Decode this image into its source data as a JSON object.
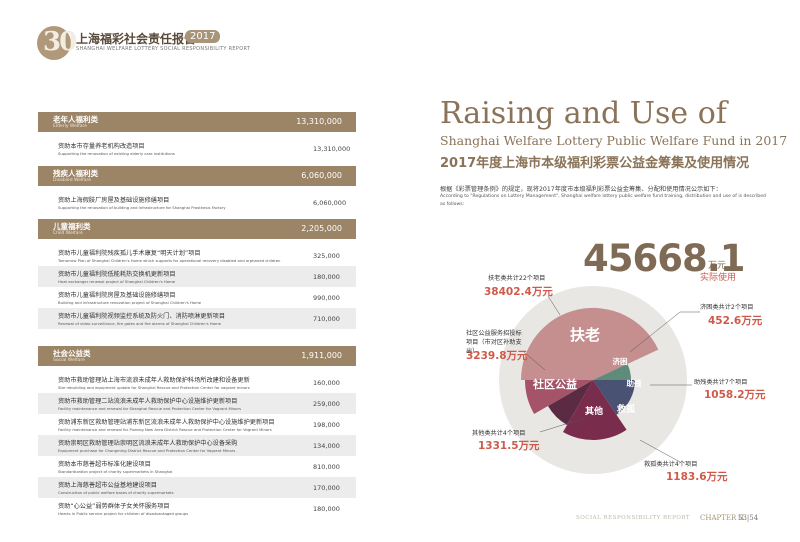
{
  "header": {
    "logo_number": "30",
    "title": "上海福彩社会责任报告",
    "year": "2017",
    "subtitle_en": "SHANGHAI WELFARE LOTTERY SOCIAL RESPONSIBILITY REPORT"
  },
  "categories": [
    {
      "name": "老年人福利类",
      "name_en": "Elderly Welfare",
      "amount": "13,310,000",
      "items": [
        {
          "name": "资助本市存量养老机构改造项目",
          "name_en": "Supporting the renovation of existing elderly care institutions",
          "amount": "13,310,000"
        }
      ]
    },
    {
      "name": "残疾人福利类",
      "name_en": "Disabled Welfare",
      "amount": "6,060,000",
      "items": [
        {
          "name": "资助上海假肢厂房屋及基础设施修缮项目",
          "name_en": "Supporting the renovation of building and infrastructure for Shanghai Prosthesis Factory",
          "amount": "6,060,000"
        }
      ]
    },
    {
      "name": "儿童福利类",
      "name_en": "Child Welfare",
      "amount": "2,205,000",
      "items": [
        {
          "name": "资助市儿童福利院残疾孤儿手术康复“明天计划”项目",
          "name_en": "Tomorrow Plan of Shanghai Children's Home which supports for operational recovery disabled and orphaned children",
          "amount": "325,000"
        },
        {
          "name": "资助市儿童福利院低能耗热交换机更新项目",
          "name_en": "Heat exchanger renewal project of Shanghai Children's Home",
          "amount": "180,000"
        },
        {
          "name": "资助市儿童福利院房屋及基础设施修缮项目",
          "name_en": "Building and infrastructure renovation project of Shanghai Children's Home",
          "amount": "990,000"
        },
        {
          "name": "资助市儿童福利院视频监控系统及防火门、消防喷淋更新项目",
          "name_en": "Renewal of video surveillance, fire gates and fire alarms of Shanghai Children's Home",
          "amount": "710,000"
        }
      ]
    },
    {
      "name": "社会公益类",
      "name_en": "Social Welfare",
      "amount": "1,911,000",
      "items": [
        {
          "name": "资助市救助管理站上海市流浪未成年人救助保护科场所改建和设备更新",
          "name_en": "Site rebuilding and equipment update for Shanghai Rescue and Protection Center for vagrant minors",
          "amount": "160,000"
        },
        {
          "name": "资助市救助管理二站流浪未成年人救助保护中心设施维护更新项目",
          "name_en": "Facility maintenance and renewal for Shanghai Rescue and Protection Center for Vagrant Minors",
          "amount": "259,000"
        },
        {
          "name": "资助浦东新区救助管理站浦东新区流浪未成年人救助保护中心设施维护更新项目",
          "name_en": "Facility maintenance and renewal for Pudong New Area District Rescue and Protection Center for Vagrant Minors",
          "amount": "198,000"
        },
        {
          "name": "资助崇明区救助管理站崇明区流浪未成年人救助保护中心设备采购",
          "name_en": "Equipment purchase for Chongming District Rescue and Protection Center for Vagrant Minors",
          "amount": "134,000"
        },
        {
          "name": "资助本市慈善超市标准化建设项目",
          "name_en": "Standardization project of charity supermarkets in Shanghai",
          "amount": "810,000"
        },
        {
          "name": "资助上海慈善超市公益基地建设项目",
          "name_en": "Construction of public welfare bases of charity supermarkets",
          "amount": "170,000"
        },
        {
          "name": "资助“心公益”弱势群体子女关怀服务项目",
          "name_en": "Hearts in Public service project for children of disadvantaged groups",
          "amount": "180,000"
        }
      ]
    }
  ],
  "right": {
    "title_en_1": "Raising and Use of",
    "title_en_2": "Shanghai Welfare Lottery Public Welfare Fund in 2017",
    "title_cn": "2017年度上海市本级福利彩票公益金筹集及使用情况",
    "intro_cn": "根据《彩票管理条例》的规定，现将2017年度市本级福利彩票公益金筹集、分配和使用情况公示如下：",
    "intro_en": "According to \"Regulations on Lottery Management\", Shanghai welfare lottery public welfare fund training, distribution and use of is described as follows:",
    "total_value": "45668.1",
    "total_unit": "万元",
    "total_label": "实际使用"
  },
  "chart_data": {
    "type": "pie",
    "unit": "万元",
    "total": 45668.1,
    "slices": [
      {
        "name": "扶老",
        "label": "扶老类共计22个项目",
        "value": 38402.4,
        "value_text": "38402.4万元",
        "color": "#c48f8e"
      },
      {
        "name": "济困",
        "label": "济困类共计2个项目",
        "value": 452.6,
        "value_text": "452.6万元",
        "color": "#5f8b7b"
      },
      {
        "name": "助残",
        "label": "助残类共计7个项目",
        "value": 1058.2,
        "value_text": "1058.2万元",
        "color": "#4a5274"
      },
      {
        "name": "救孤",
        "label": "救孤类共计4个项目",
        "value": 1183.6,
        "value_text": "1183.6万元",
        "color": "#7a2c4c"
      },
      {
        "name": "其他",
        "label": "其他类共计4个项目",
        "value": 1331.5,
        "value_text": "1331.5万元",
        "color": "#5b2a43"
      },
      {
        "name": "社区公益",
        "label": "社区公益服务招投标项目（市对区补助支出）",
        "value": 3239.8,
        "value_text": "3239.8万元",
        "color": "#a45368"
      }
    ]
  },
  "footer": {
    "text": "SOCIAL RESPONSIBILITY REPORT",
    "chapter": "CHAPTER II",
    "pages": "53|54"
  }
}
